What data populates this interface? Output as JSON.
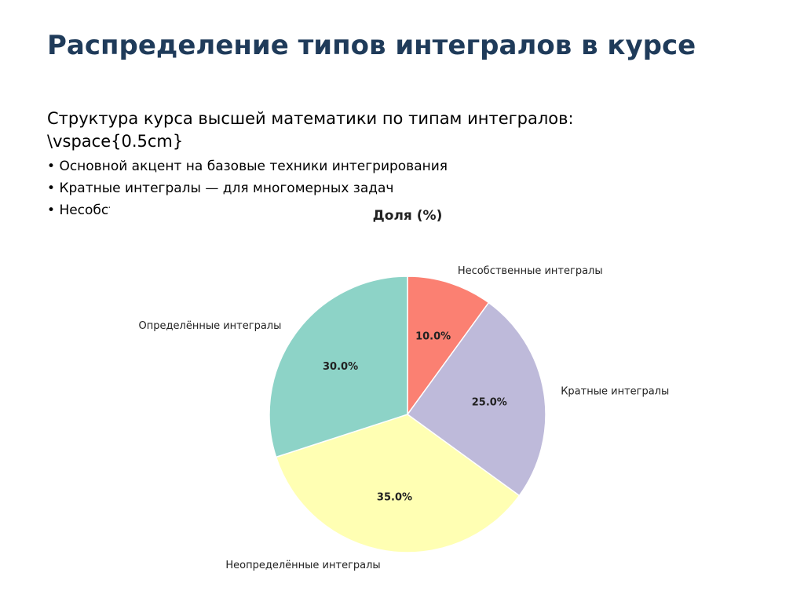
{
  "slide": {
    "title": "Распределение типов интегралов в курсе",
    "intro": "Структура курса высшей математики по типам интегралов:",
    "vspace": "\\vspace{0.5cm}",
    "bullets": [
      "Основной акцент на базовые техники интегрирования",
      "Кратные интегралы — для многомерных задач",
      "Несобст"
    ]
  },
  "chart_data": {
    "type": "pie",
    "title": "Доля (%)",
    "slices": [
      {
        "label": "Несобственные интегралы",
        "value": 10.0,
        "pct_label": "10.0%",
        "color": "#fb8072"
      },
      {
        "label": "Кратные интегралы",
        "value": 25.0,
        "pct_label": "25.0%",
        "color": "#bebada"
      },
      {
        "label": "Неопределённые интегралы",
        "value": 35.0,
        "pct_label": "35.0%",
        "color": "#ffffb3"
      },
      {
        "label": "Определённые интегралы",
        "value": 30.0,
        "pct_label": "30.0%",
        "color": "#8dd3c7"
      }
    ],
    "start_angle": "top",
    "direction": "clockwise",
    "legend": "none"
  }
}
